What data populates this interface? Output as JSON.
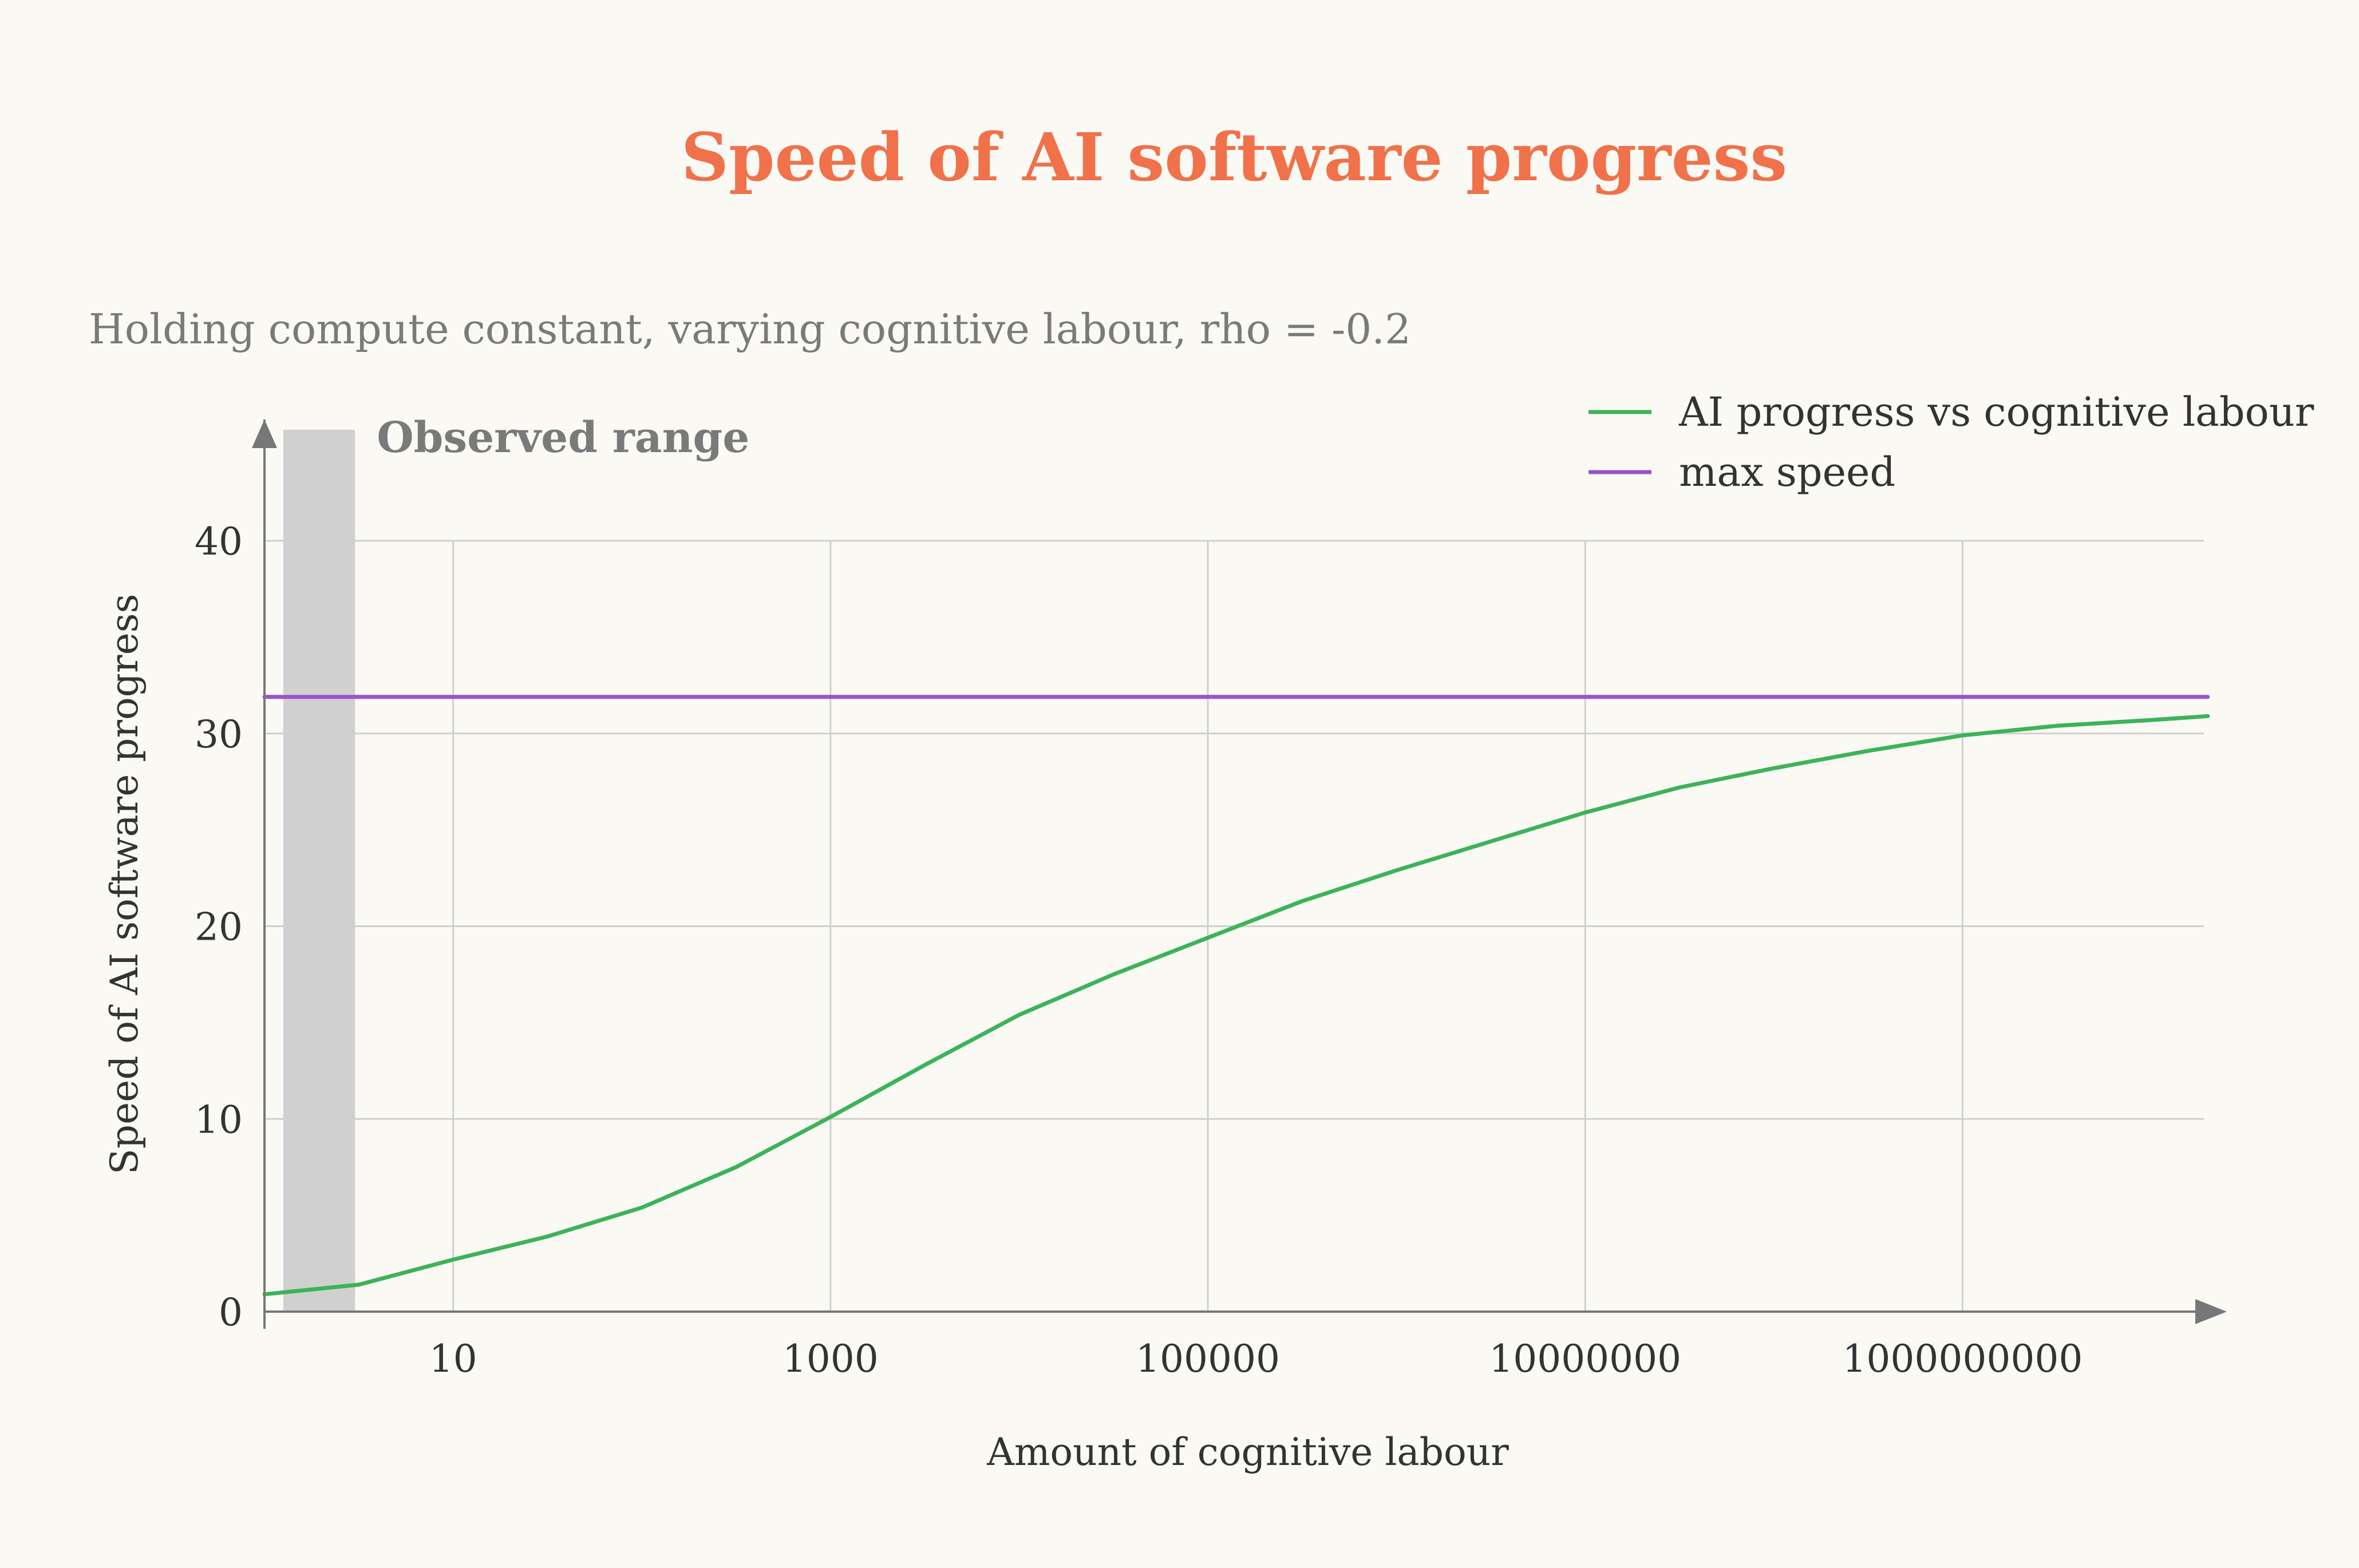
{
  "colors": {
    "background": "#faf9f4",
    "title": "#f0714a",
    "subtitle": "#7a7a7a",
    "text": "#333333",
    "grid": "#d0d0d0",
    "axis": "#777777",
    "observed_band": "#d0d0d0",
    "observed_label": "#7a7a7a",
    "progress_line": "#3cb35a",
    "max_line": "#9a55c9"
  },
  "chart_data": {
    "type": "line",
    "title": "Speed of AI software progress",
    "subtitle": "Holding compute constant, varying cognitive labour, rho = -0.2",
    "xlabel": "Amount of cognitive labour",
    "ylabel": "Speed of AI software progress",
    "x_scale": "log10",
    "xlim_log10": [
      0,
      10.3
    ],
    "ylim": [
      0,
      46
    ],
    "x_ticks": [
      {
        "log10": 1,
        "label": "10"
      },
      {
        "log10": 3,
        "label": "1000"
      },
      {
        "log10": 5,
        "label": "100000"
      },
      {
        "log10": 7,
        "label": "10000000"
      },
      {
        "log10": 9,
        "label": "1000000000"
      }
    ],
    "y_ticks": [
      {
        "value": 0,
        "label": "0"
      },
      {
        "value": 10,
        "label": "10"
      },
      {
        "value": 20,
        "label": "20"
      },
      {
        "value": 30,
        "label": "30"
      },
      {
        "value": 40,
        "label": "40"
      }
    ],
    "grid": true,
    "legend_position": "top-right",
    "observed_range": {
      "label": "Observed range",
      "x_log10": [
        0.1,
        0.48
      ]
    },
    "series": [
      {
        "name": "AI progress vs cognitive labour",
        "color_key": "progress_line",
        "x_log10": [
          0,
          0.5,
          1,
          1.5,
          2,
          2.5,
          3,
          3.5,
          4,
          4.5,
          5,
          5.5,
          6,
          6.5,
          7,
          7.5,
          8,
          8.5,
          9,
          9.5,
          10,
          10.3
        ],
        "values": [
          0.9,
          1.4,
          2.7,
          3.9,
          5.4,
          7.5,
          10.1,
          12.8,
          15.4,
          17.5,
          19.4,
          21.3,
          22.9,
          24.4,
          25.9,
          27.2,
          28.2,
          29.1,
          29.9,
          30.4,
          30.7,
          30.9
        ]
      },
      {
        "name": "max speed",
        "color_key": "max_line",
        "x_log10": [
          0,
          10.3
        ],
        "values": [
          31.9,
          31.9
        ]
      }
    ]
  }
}
